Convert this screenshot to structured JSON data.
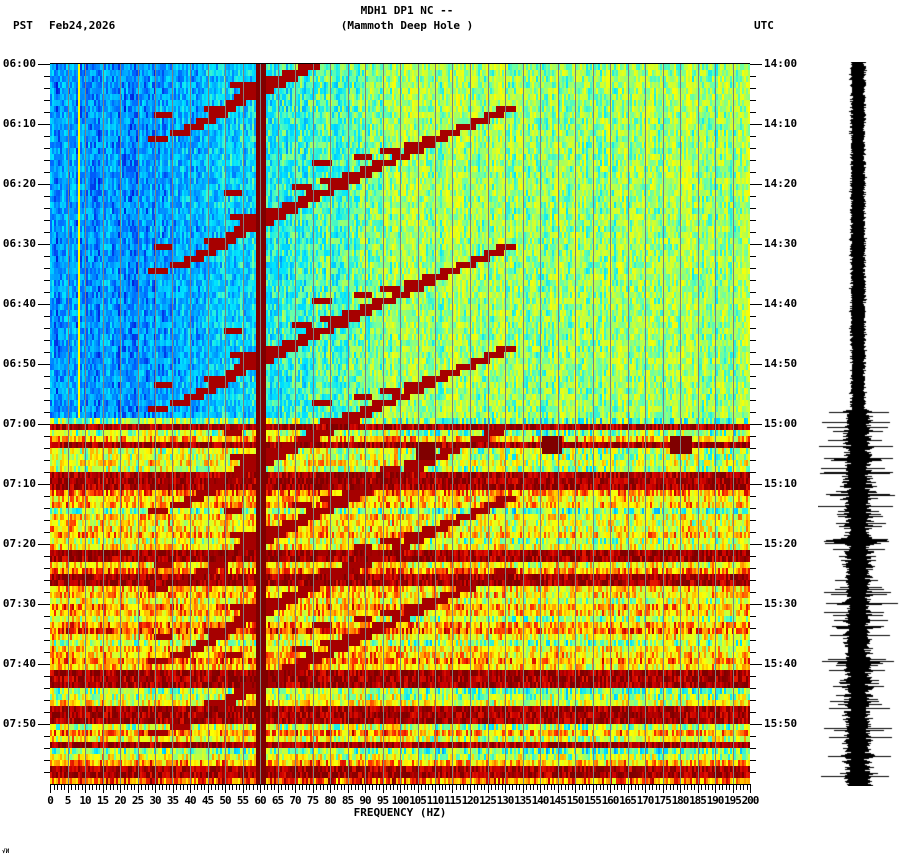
{
  "header": {
    "station_line": "MDH1 DP1 NC --",
    "location_line": "(Mammoth Deep Hole )",
    "left_timezone": "PST",
    "date": "Feb24,2026",
    "right_timezone": "UTC"
  },
  "footer": {
    "corner_mark": "√И"
  },
  "colors": {
    "background": "#ffffff",
    "axis": "#000000",
    "gridline": "#808080",
    "trace": "#000000",
    "colormap": [
      "#0000cc",
      "#0066ff",
      "#00aaff",
      "#00e5ff",
      "#66ffaa",
      "#ccff33",
      "#ffff00",
      "#ffaa00",
      "#ff3300",
      "#cc0000",
      "#800000"
    ]
  },
  "chart_data": {
    "type": "heatmap",
    "title": "MDH1 DP1 NC -- (Mammoth Deep Hole )",
    "subtitle": "Feb24,2026",
    "xlabel": "FREQUENCY (HZ)",
    "ylabel_left": "PST",
    "ylabel_right": "UTC",
    "xlim": [
      0,
      200
    ],
    "x_ticks": [
      0,
      5,
      10,
      15,
      20,
      25,
      30,
      35,
      40,
      45,
      50,
      55,
      60,
      65,
      70,
      75,
      80,
      85,
      90,
      95,
      100,
      105,
      110,
      115,
      120,
      125,
      130,
      135,
      140,
      145,
      150,
      155,
      160,
      165,
      170,
      175,
      180,
      185,
      190,
      195,
      200
    ],
    "x_minor_tick_hz": 1,
    "y_ticks_left": [
      "06:00",
      "06:10",
      "06:20",
      "06:30",
      "06:40",
      "06:50",
      "07:00",
      "07:10",
      "07:20",
      "07:30",
      "07:40",
      "07:50"
    ],
    "y_ticks_right": [
      "14:00",
      "14:10",
      "14:20",
      "14:30",
      "14:40",
      "14:50",
      "15:00",
      "15:10",
      "15:20",
      "15:30",
      "15:40",
      "15:50"
    ],
    "y_minor_tick_min": 2,
    "time_span_minutes": 120,
    "grid": {
      "vertical_every_hz": 5,
      "horizontal": false
    },
    "features": {
      "persistent_line_hz": 60,
      "weak_line_hz": 8,
      "quiet_period": {
        "start": "06:00",
        "end": "06:59",
        "low_freq_level": "blue",
        "high_freq_level": "cyan-green"
      },
      "noisy_period": {
        "start": "07:00",
        "end": "08:00",
        "level": "yellow-red"
      },
      "chirp_sweeps": {
        "description": "descending-frequency curved arcs repeating roughly every 1.5-2 min, sweeping from ~20-45 Hz up toward 60-130 Hz",
        "start_times_min": [
          13,
          35,
          58,
          75,
          88,
          100,
          112
        ]
      },
      "broadband_bursts_min": [
        60.5,
        63.5,
        69,
        70.5,
        82,
        86,
        102,
        103.5,
        108,
        109.5,
        113.5,
        118
      ],
      "transient_blobs": [
        {
          "time_min": 64,
          "freq_hz": 143
        },
        {
          "time_min": 64,
          "freq_hz": 180
        },
        {
          "time_min": 64.5,
          "freq_hz": 107
        }
      ]
    },
    "seismogram": {
      "quiet_until_min": 58,
      "active_from_min": 60,
      "max_amplitude_rel": 1.0,
      "quiet_amplitude_rel": 0.2
    }
  }
}
